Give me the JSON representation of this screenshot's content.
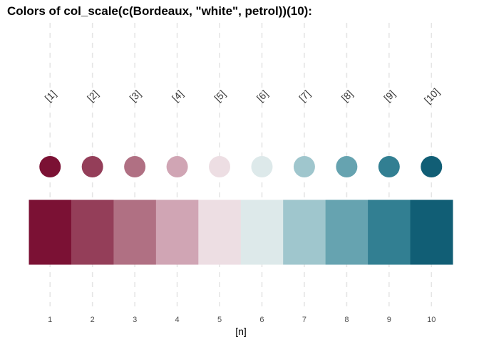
{
  "chart_data": {
    "type": "bar",
    "title": "Colors of col_scale(c(Bordeaux, \"white\", petrol))(10):",
    "xlabel": "[n]",
    "ylabel": "",
    "x": [
      1,
      2,
      3,
      4,
      5,
      6,
      7,
      8,
      9,
      10
    ],
    "tick_labels": [
      "1",
      "2",
      "3",
      "4",
      "5",
      "6",
      "7",
      "8",
      "9",
      "10"
    ],
    "index_labels": [
      "[1]",
      "[2]",
      "[3]",
      "[4]",
      "[5]",
      "[6]",
      "[7]",
      "[8]",
      "[9]",
      "[10]"
    ],
    "colors": [
      "#7b1134",
      "#943e59",
      "#b07083",
      "#d0a5b4",
      "#eddee3",
      "#dde9ea",
      "#9fc6cd",
      "#66a3b0",
      "#327f92",
      "#115e75"
    ],
    "xlim": [
      0.5,
      10.5
    ],
    "grid": true,
    "legend": "none"
  }
}
